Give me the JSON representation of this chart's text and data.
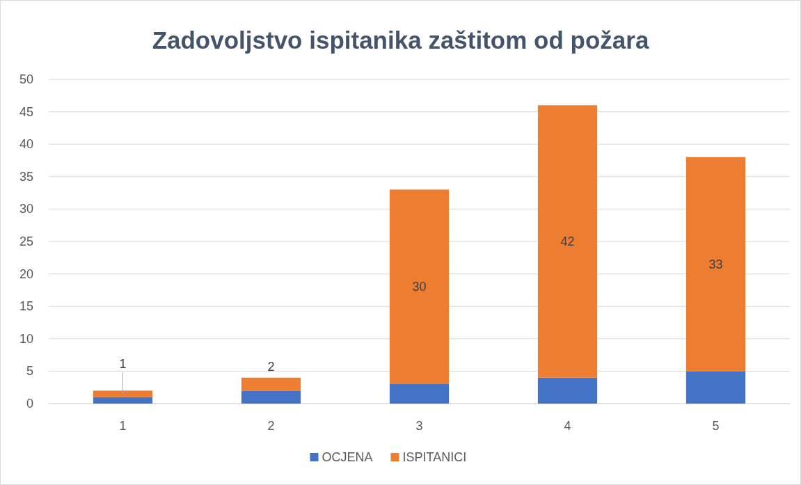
{
  "chart_data": {
    "type": "bar",
    "title": "Zadovoljstvo ispitanika zaštitom od požara",
    "categories": [
      "1",
      "2",
      "3",
      "4",
      "5"
    ],
    "stacked": true,
    "ylim": [
      0,
      50
    ],
    "yticks": [
      0,
      5,
      10,
      15,
      20,
      25,
      30,
      35,
      40,
      45,
      50
    ],
    "grid": "y",
    "legend": "bottom",
    "series": [
      {
        "name": "OCJENA",
        "color": "#4472c4",
        "values": [
          1,
          2,
          3,
          4,
          5
        ]
      },
      {
        "name": "ISPITANICI",
        "color": "#ed7d31",
        "values": [
          1,
          2,
          30,
          42,
          33
        ],
        "value_labels": [
          "1",
          "2",
          "30",
          "42",
          "33"
        ]
      }
    ]
  }
}
